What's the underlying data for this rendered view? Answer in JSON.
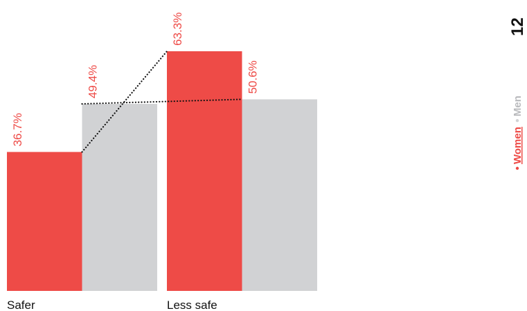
{
  "chart_data": {
    "type": "bar",
    "categories": [
      "Safer",
      "Less safe"
    ],
    "series": [
      {
        "name": "Women",
        "color": "#ee4b47",
        "values": [
          36.7,
          63.3
        ],
        "value_labels": [
          "36.7%",
          "63.3%"
        ]
      },
      {
        "name": "Men",
        "color": "#d1d2d4",
        "values": [
          49.4,
          50.6
        ],
        "value_labels": [
          "49.4%",
          "50.6%"
        ]
      }
    ],
    "page_number": "12"
  }
}
